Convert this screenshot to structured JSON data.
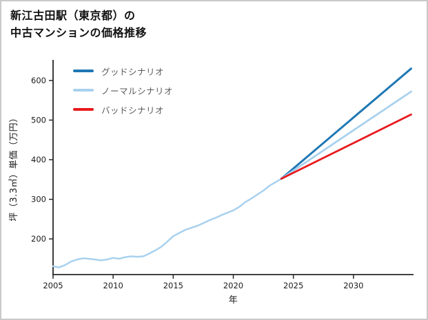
{
  "chart_data": {
    "type": "line",
    "title": "新江古田駅（東京都）の中古マンションの価格推移",
    "title_lines": [
      "新江古田駅（東京都）の",
      "中古マンションの価格推移"
    ],
    "xlabel": "年",
    "ylabel": "坪（3.3㎡）単価（万円）",
    "xlim": [
      2005,
      2035
    ],
    "ylim": [
      110,
      652
    ],
    "xticks": [
      2005,
      2010,
      2015,
      2020,
      2025,
      2030
    ],
    "yticks": [
      200,
      300,
      400,
      500,
      600
    ],
    "grid": false,
    "legend_position": "upper-left",
    "axis_color": "#262626",
    "legend": [
      {
        "label": "グッドシナリオ",
        "color": "#1f77b4"
      },
      {
        "label": "ノーマルシナリオ",
        "color": "#a8d1ee"
      },
      {
        "label": "バッドシナリオ",
        "color": "#e8191d"
      }
    ],
    "series": [
      {
        "name": "history",
        "color": "#a8d1ee",
        "width": 2.5,
        "x": [
          2005,
          2005.5,
          2006,
          2006.5,
          2007,
          2007.5,
          2008,
          2008.5,
          2009,
          2009.5,
          2010,
          2010.5,
          2011,
          2011.5,
          2012,
          2012.5,
          2013,
          2013.5,
          2014,
          2014.5,
          2015,
          2015.5,
          2016,
          2016.5,
          2017,
          2017.5,
          2018,
          2018.5,
          2019,
          2019.5,
          2020,
          2020.5,
          2021,
          2021.5,
          2022,
          2022.5,
          2023,
          2023.5,
          2024
        ],
        "y": [
          131,
          128,
          134,
          143,
          148,
          151,
          150,
          148,
          146,
          148,
          152,
          150,
          154,
          156,
          155,
          156,
          163,
          171,
          180,
          193,
          207,
          215,
          223,
          228,
          233,
          240,
          247,
          253,
          260,
          266,
          272,
          281,
          293,
          302,
          312,
          322,
          334,
          343,
          352
        ]
      },
      {
        "name": "グッドシナリオ",
        "color": "#1f77b4",
        "width": 3,
        "x": [
          2024,
          2034.8
        ],
        "y": [
          352,
          630
        ]
      },
      {
        "name": "ノーマルシナリオ",
        "color": "#a8d1ee",
        "width": 2.8,
        "x": [
          2024,
          2034.8
        ],
        "y": [
          352,
          572
        ]
      },
      {
        "name": "バッドシナリオ",
        "color": "#e8191d",
        "width": 2.8,
        "x": [
          2024,
          2034.8
        ],
        "y": [
          352,
          514
        ]
      }
    ]
  }
}
